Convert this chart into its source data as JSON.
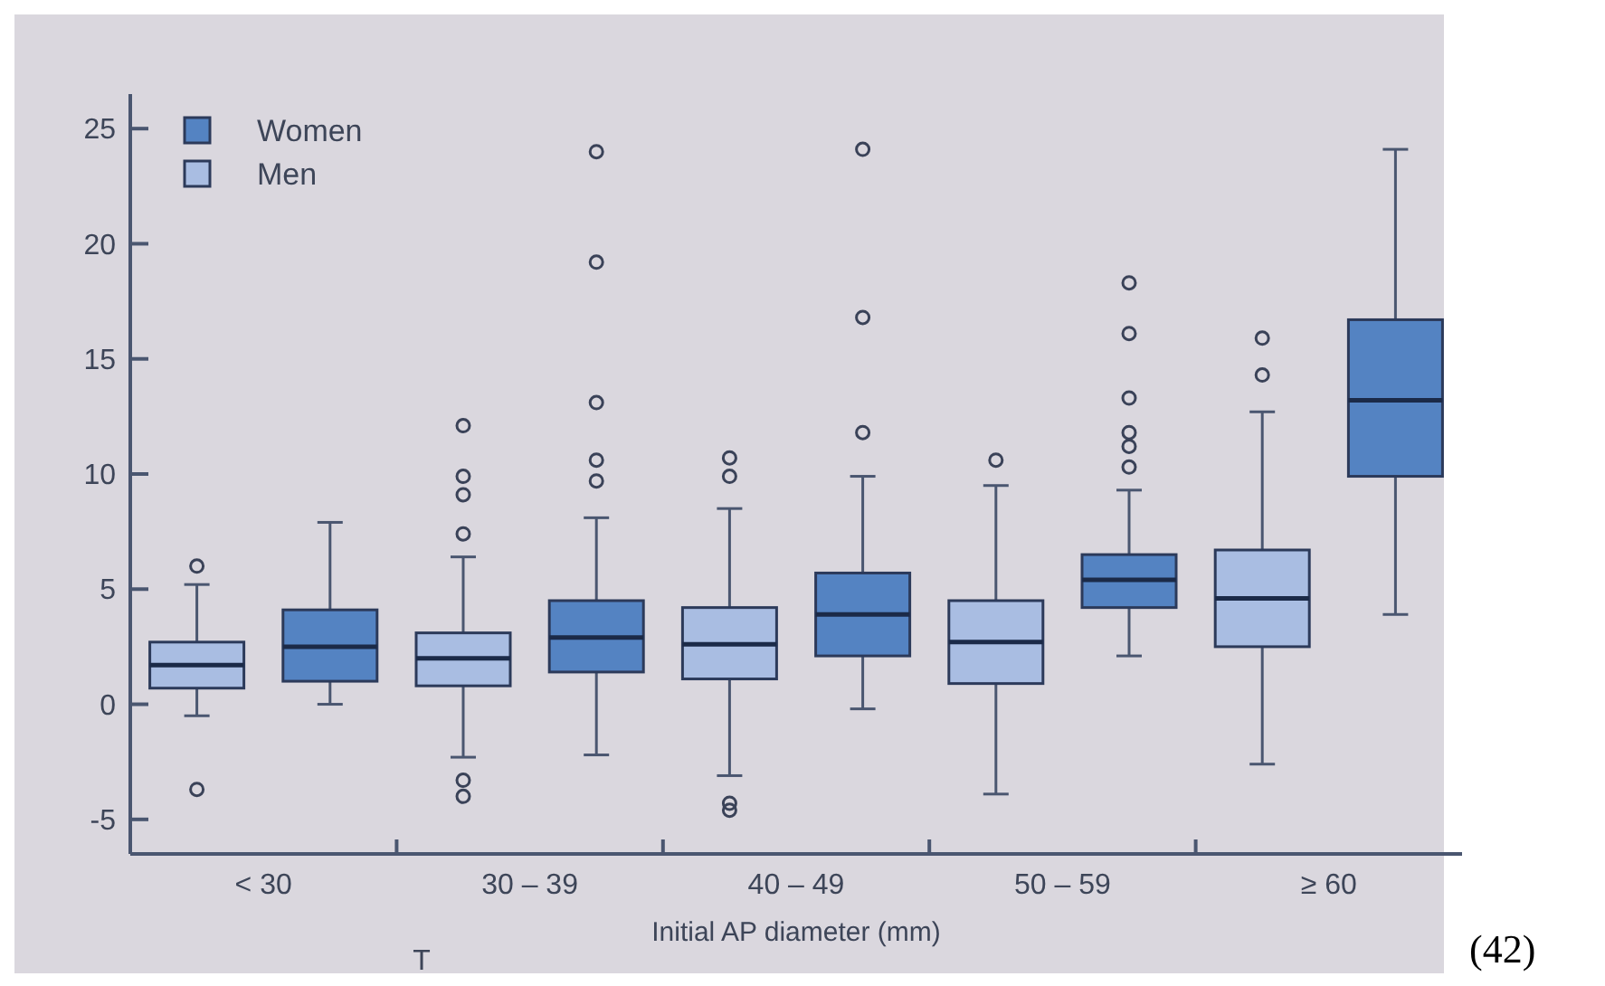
{
  "chart_data": {
    "type": "box",
    "xlabel": "Initial AP diameter (mm)",
    "categories": [
      "< 30",
      "30 – 39",
      "40 – 49",
      "50 – 59",
      "≥ 60"
    ],
    "ylim": [
      -6.5,
      26.5
    ],
    "yticks": [
      -5,
      0,
      5,
      10,
      15,
      20,
      25
    ],
    "legend": "top left",
    "grid": false,
    "annotations": [
      "(42)",
      "T"
    ],
    "series": [
      {
        "name": "Women",
        "color": "#5483c2",
        "boxes": [
          {
            "low": 0,
            "q1": 1.0,
            "median": 2.5,
            "q3": 4.1,
            "high": 7.9
          },
          {
            "low": -2.2,
            "q1": 1.4,
            "median": 2.9,
            "q3": 4.5,
            "high": 8.1,
            "outliers": [
              24.0,
              19.2,
              13.1,
              10.6,
              9.7
            ]
          },
          {
            "low": -0.2,
            "q1": 2.1,
            "median": 3.9,
            "q3": 5.7,
            "high": 9.9,
            "outliers": [
              24.1,
              16.8,
              11.8
            ]
          },
          {
            "low": 2.1,
            "q1": 4.2,
            "median": 5.4,
            "q3": 6.5,
            "high": 9.3,
            "outliers": [
              18.3,
              16.1,
              13.3,
              11.8,
              11.2,
              10.3
            ]
          },
          {
            "low": 3.9,
            "q1": 9.9,
            "median": 13.2,
            "q3": 16.7,
            "high": 24.1
          }
        ]
      },
      {
        "name": "Men",
        "color": "#a9bde2",
        "boxes": [
          {
            "low": -0.5,
            "q1": 0.7,
            "median": 1.7,
            "q3": 2.7,
            "high": 5.2,
            "outliers": [
              6.0,
              -3.7
            ]
          },
          {
            "low": -2.3,
            "q1": 0.8,
            "median": 2.0,
            "q3": 3.1,
            "high": 6.4,
            "outliers": [
              12.1,
              9.9,
              9.1,
              7.4,
              -3.3,
              -4.0
            ]
          },
          {
            "low": -3.1,
            "q1": 1.1,
            "median": 2.6,
            "q3": 4.2,
            "high": 8.5,
            "outliers": [
              10.7,
              9.9,
              -4.3,
              -4.6
            ]
          },
          {
            "low": -3.9,
            "q1": 0.9,
            "median": 2.7,
            "q3": 4.5,
            "high": 9.5,
            "outliers": [
              10.6
            ]
          },
          {
            "low": -2.6,
            "q1": 2.5,
            "median": 4.6,
            "q3": 6.7,
            "high": 12.7,
            "outliers": [
              15.9,
              14.3
            ]
          }
        ]
      }
    ]
  }
}
